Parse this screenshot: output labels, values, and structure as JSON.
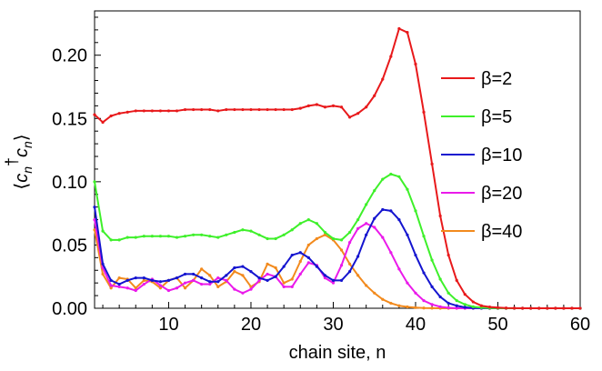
{
  "chart_data": {
    "type": "line",
    "xlabel": "chain site, n",
    "ylabel": "⟨c_n†c_n⟩",
    "xlim": [
      1,
      60
    ],
    "ylim": [
      0,
      0.235
    ],
    "xticks": [
      10,
      20,
      30,
      40,
      50,
      60
    ],
    "yticks": [
      0.0,
      0.05,
      0.1,
      0.15,
      0.2
    ],
    "ytick_labels": [
      "0.00",
      "0.05",
      "0.10",
      "0.15",
      "0.20"
    ],
    "legend_position": "right",
    "series": [
      {
        "name": "β=2",
        "color": "#e8191b",
        "x": [
          1,
          2,
          3,
          4,
          5,
          6,
          7,
          8,
          9,
          10,
          11,
          12,
          13,
          14,
          15,
          16,
          17,
          18,
          19,
          20,
          21,
          22,
          23,
          24,
          25,
          26,
          27,
          28,
          29,
          30,
          31,
          32,
          33,
          34,
          35,
          36,
          37,
          38,
          39,
          40,
          41,
          42,
          43,
          44,
          45,
          46,
          47,
          48,
          49,
          50,
          51,
          52,
          53,
          54,
          55,
          56,
          57,
          58,
          59,
          60
        ],
        "y": [
          0.153,
          0.147,
          0.152,
          0.154,
          0.155,
          0.156,
          0.156,
          0.156,
          0.156,
          0.156,
          0.156,
          0.157,
          0.157,
          0.157,
          0.157,
          0.156,
          0.157,
          0.157,
          0.157,
          0.157,
          0.157,
          0.157,
          0.157,
          0.157,
          0.157,
          0.158,
          0.16,
          0.161,
          0.159,
          0.16,
          0.159,
          0.151,
          0.154,
          0.159,
          0.168,
          0.181,
          0.199,
          0.221,
          0.218,
          0.193,
          0.155,
          0.114,
          0.073,
          0.042,
          0.022,
          0.011,
          0.005,
          0.002,
          0.001,
          0.0005,
          0.0002,
          0.0001,
          0,
          0,
          0,
          0,
          0,
          0,
          0,
          0
        ]
      },
      {
        "name": "β=5",
        "color": "#3ef02a",
        "x": [
          1,
          2,
          3,
          4,
          5,
          6,
          7,
          8,
          9,
          10,
          11,
          12,
          13,
          14,
          15,
          16,
          17,
          18,
          19,
          20,
          21,
          22,
          23,
          24,
          25,
          26,
          27,
          28,
          29,
          30,
          31,
          32,
          33,
          34,
          35,
          36,
          37,
          38,
          39,
          40,
          41,
          42,
          43,
          44,
          45,
          46,
          47,
          48,
          49,
          50,
          51,
          52,
          53,
          54,
          55,
          56,
          57,
          58,
          59,
          60
        ],
        "y": [
          0.1,
          0.061,
          0.054,
          0.054,
          0.056,
          0.056,
          0.057,
          0.057,
          0.057,
          0.057,
          0.056,
          0.057,
          0.058,
          0.058,
          0.057,
          0.056,
          0.058,
          0.06,
          0.062,
          0.061,
          0.058,
          0.055,
          0.055,
          0.058,
          0.062,
          0.067,
          0.07,
          0.067,
          0.06,
          0.055,
          0.054,
          0.06,
          0.07,
          0.082,
          0.093,
          0.102,
          0.106,
          0.104,
          0.094,
          0.077,
          0.057,
          0.038,
          0.023,
          0.012,
          0.006,
          0.003,
          0.0012,
          0.0005,
          0.0002,
          0.0001,
          0,
          0,
          0,
          0,
          0,
          0,
          0,
          0,
          0,
          0
        ]
      },
      {
        "name": "β=10",
        "color": "#1414cf",
        "x": [
          1,
          2,
          3,
          4,
          5,
          6,
          7,
          8,
          9,
          10,
          11,
          12,
          13,
          14,
          15,
          16,
          17,
          18,
          19,
          20,
          21,
          22,
          23,
          24,
          25,
          26,
          27,
          28,
          29,
          30,
          31,
          32,
          33,
          34,
          35,
          36,
          37,
          38,
          39,
          40,
          41,
          42,
          43,
          44,
          45,
          46,
          47,
          48,
          49,
          50,
          51,
          52,
          53,
          54,
          55,
          56,
          57,
          58,
          59,
          60
        ],
        "y": [
          0.08,
          0.035,
          0.022,
          0.019,
          0.022,
          0.024,
          0.024,
          0.022,
          0.021,
          0.022,
          0.024,
          0.027,
          0.027,
          0.024,
          0.021,
          0.021,
          0.026,
          0.032,
          0.033,
          0.029,
          0.024,
          0.022,
          0.025,
          0.033,
          0.042,
          0.044,
          0.04,
          0.033,
          0.026,
          0.022,
          0.022,
          0.029,
          0.041,
          0.058,
          0.071,
          0.078,
          0.077,
          0.07,
          0.058,
          0.042,
          0.028,
          0.017,
          0.009,
          0.004,
          0.002,
          0.0007,
          0.0002,
          0.0001,
          0,
          0,
          0,
          0,
          0,
          0,
          0,
          0,
          0,
          0,
          0,
          0
        ]
      },
      {
        "name": "β=20",
        "color": "#ea1aea",
        "x": [
          1,
          2,
          3,
          4,
          5,
          6,
          7,
          8,
          9,
          10,
          11,
          12,
          13,
          14,
          15,
          16,
          17,
          18,
          19,
          20,
          21,
          22,
          23,
          24,
          25,
          26,
          27,
          28,
          29,
          30,
          31,
          32,
          33,
          34,
          35,
          36,
          37,
          38,
          39,
          40,
          41,
          42,
          43,
          44,
          45,
          46,
          47,
          48,
          49,
          50,
          51,
          52,
          53,
          54,
          55,
          56,
          57,
          58,
          59,
          60
        ],
        "y": [
          0.07,
          0.032,
          0.018,
          0.017,
          0.016,
          0.014,
          0.019,
          0.023,
          0.018,
          0.014,
          0.016,
          0.02,
          0.022,
          0.019,
          0.019,
          0.024,
          0.022,
          0.015,
          0.012,
          0.015,
          0.022,
          0.027,
          0.025,
          0.017,
          0.017,
          0.027,
          0.036,
          0.034,
          0.024,
          0.02,
          0.034,
          0.052,
          0.063,
          0.067,
          0.064,
          0.056,
          0.044,
          0.031,
          0.02,
          0.012,
          0.006,
          0.003,
          0.0012,
          0.0004,
          0.0001,
          0,
          0,
          0,
          0,
          0,
          0,
          0,
          0,
          0,
          0,
          0,
          0,
          0,
          0,
          0
        ]
      },
      {
        "name": "β=40",
        "color": "#f28a1d",
        "x": [
          1,
          2,
          3,
          4,
          5,
          6,
          7,
          8,
          9,
          10,
          11,
          12,
          13,
          14,
          15,
          16,
          17,
          18,
          19,
          20,
          21,
          22,
          23,
          24,
          25,
          26,
          27,
          28,
          29,
          30,
          31,
          32,
          33,
          34,
          35,
          36,
          37,
          38,
          39,
          40,
          41,
          42,
          43,
          44,
          45,
          46,
          47,
          48,
          49,
          50,
          51,
          52,
          53,
          54,
          55,
          56,
          57,
          58,
          59,
          60
        ],
        "y": [
          0.062,
          0.027,
          0.016,
          0.024,
          0.023,
          0.016,
          0.022,
          0.021,
          0.016,
          0.022,
          0.024,
          0.016,
          0.022,
          0.031,
          0.026,
          0.017,
          0.021,
          0.029,
          0.026,
          0.017,
          0.021,
          0.035,
          0.032,
          0.02,
          0.023,
          0.037,
          0.05,
          0.055,
          0.058,
          0.054,
          0.046,
          0.035,
          0.026,
          0.018,
          0.012,
          0.007,
          0.004,
          0.002,
          0.0011,
          0.0005,
          0.0002,
          0.0001,
          0,
          0,
          0,
          0,
          0,
          0,
          0,
          0,
          0,
          0,
          0,
          0,
          0,
          0,
          0,
          0,
          0,
          0
        ]
      }
    ]
  }
}
